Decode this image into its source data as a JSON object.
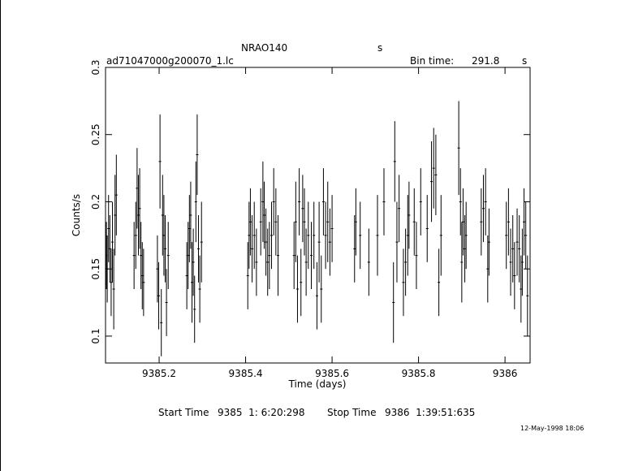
{
  "chart_data": {
    "type": "errorbar",
    "title": "NRAO140",
    "title_suffix": "s",
    "filename": "ad71047000g200070_1.lc",
    "bin_time_label": "Bin time:",
    "bin_time": 291.8,
    "bin_time_unit": "s",
    "xlabel": "Time (days)",
    "ylabel": "Counts/s",
    "start_time_label": "Start Time",
    "start_time": "9385  1: 6:20:298",
    "stop_time_label": "Stop Time",
    "stop_time": "9386  1:39:51:635",
    "date": "12-May-1998 18:06",
    "xlim": [
      9385.076,
      9386.058
    ],
    "ylim": [
      0.08,
      0.3
    ],
    "xticks": [
      9385.2,
      9385.4,
      9385.6,
      9385.8,
      9386
    ],
    "yticks": [
      0.1,
      0.15,
      0.2,
      0.25,
      0.3
    ],
    "color": "#000000",
    "series": [
      {
        "x": [
          9385.078,
          9385.08,
          9385.083,
          9385.086,
          9385.089,
          9385.092,
          9385.095,
          9385.098,
          9385.101,
          9385.142,
          9385.146,
          9385.149,
          9385.152,
          9385.155,
          9385.158,
          9385.161,
          9385.164,
          9385.196,
          9385.199,
          9385.202,
          9385.205,
          9385.208,
          9385.211,
          9385.214,
          9385.217,
          9385.221,
          9385.264,
          9385.267,
          9385.27,
          9385.273,
          9385.276,
          9385.279,
          9385.282,
          9385.285,
          9385.288,
          9385.291,
          9385.294,
          9385.298,
          9385.405,
          9385.408,
          9385.411,
          9385.415,
          9385.42,
          9385.425,
          9385.435,
          9385.44,
          9385.443,
          9385.447,
          9385.451,
          9385.455,
          9385.46,
          9385.465,
          9385.47,
          9385.475,
          9385.512,
          9385.516,
          9385.52,
          9385.524,
          9385.528,
          9385.532,
          9385.536,
          9385.54,
          9385.545,
          9385.552,
          9385.558,
          9385.565,
          9385.57,
          9385.575,
          9385.58,
          9385.585,
          9385.59,
          9385.595,
          9385.6,
          9385.652,
          9385.655,
          9385.665,
          9385.685,
          9385.705,
          9385.72,
          9385.742,
          9385.745,
          9385.75,
          9385.755,
          9385.765,
          9385.77,
          9385.775,
          9385.778,
          9385.79,
          9385.795,
          9385.805,
          9385.82,
          9385.83,
          9385.835,
          9385.84,
          9385.847,
          9385.852,
          9385.893,
          9385.897,
          9385.9,
          9385.903,
          9385.907,
          9385.91,
          9385.945,
          9385.95,
          9385.955,
          9385.96,
          9385.963,
          9386.003,
          9386.008,
          9386.013,
          9386.018,
          9386.022,
          9386.028,
          9386.033,
          9386.037,
          9386.04,
          9386.044,
          9386.048,
          9386.052
        ],
        "values": [
          0.16,
          0.15,
          0.18,
          0.165,
          0.14,
          0.17,
          0.135,
          0.19,
          0.205,
          0.16,
          0.175,
          0.21,
          0.19,
          0.195,
          0.16,
          0.145,
          0.14,
          0.15,
          0.13,
          0.23,
          0.11,
          0.19,
          0.175,
          0.165,
          0.125,
          0.16,
          0.145,
          0.16,
          0.18,
          0.19,
          0.14,
          0.155,
          0.12,
          0.2,
          0.235,
          0.165,
          0.135,
          0.17,
          0.145,
          0.175,
          0.185,
          0.165,
          0.175,
          0.155,
          0.185,
          0.2,
          0.19,
          0.17,
          0.155,
          0.16,
          0.175,
          0.2,
          0.185,
          0.16,
          0.16,
          0.185,
          0.135,
          0.2,
          0.14,
          0.195,
          0.185,
          0.155,
          0.175,
          0.16,
          0.175,
          0.13,
          0.17,
          0.135,
          0.2,
          0.175,
          0.185,
          0.17,
          0.18,
          0.165,
          0.185,
          0.175,
          0.155,
          0.175,
          0.2,
          0.125,
          0.23,
          0.17,
          0.195,
          0.14,
          0.155,
          0.175,
          0.19,
          0.185,
          0.16,
          0.2,
          0.18,
          0.215,
          0.225,
          0.22,
          0.14,
          0.175,
          0.24,
          0.2,
          0.155,
          0.185,
          0.165,
          0.175,
          0.185,
          0.195,
          0.2,
          0.15,
          0.17,
          0.175,
          0.185,
          0.155,
          0.165,
          0.145,
          0.17,
          0.165,
          0.135,
          0.155,
          0.185,
          0.175,
          0.13
        ],
        "errors": [
          0.025,
          0.025,
          0.025,
          0.025,
          0.025,
          0.03,
          0.03,
          0.03,
          0.03,
          0.025,
          0.025,
          0.03,
          0.03,
          0.03,
          0.025,
          0.025,
          0.025,
          0.025,
          0.025,
          0.035,
          0.025,
          0.03,
          0.03,
          0.025,
          0.025,
          0.025,
          0.025,
          0.025,
          0.025,
          0.025,
          0.03,
          0.025,
          0.025,
          0.03,
          0.03,
          0.025,
          0.025,
          0.03,
          0.025,
          0.025,
          0.025,
          0.025,
          0.025,
          0.025,
          0.025,
          0.03,
          0.025,
          0.025,
          0.025,
          0.025,
          0.025,
          0.025,
          0.025,
          0.03,
          0.025,
          0.03,
          0.025,
          0.025,
          0.025,
          0.025,
          0.025,
          0.025,
          0.025,
          0.025,
          0.025,
          0.025,
          0.03,
          0.025,
          0.025,
          0.025,
          0.03,
          0.025,
          0.025,
          0.025,
          0.025,
          0.025,
          0.025,
          0.03,
          0.025,
          0.03,
          0.03,
          0.03,
          0.025,
          0.025,
          0.025,
          0.03,
          0.025,
          0.025,
          0.025,
          0.025,
          0.025,
          0.03,
          0.03,
          0.03,
          0.025,
          0.03,
          0.035,
          0.025,
          0.03,
          0.025,
          0.025,
          0.025,
          0.025,
          0.025,
          0.025,
          0.025,
          0.025,
          0.025,
          0.025,
          0.025,
          0.025,
          0.025,
          0.025,
          0.025,
          0.025,
          0.025,
          0.025,
          0.025,
          0.03
        ]
      }
    ]
  }
}
